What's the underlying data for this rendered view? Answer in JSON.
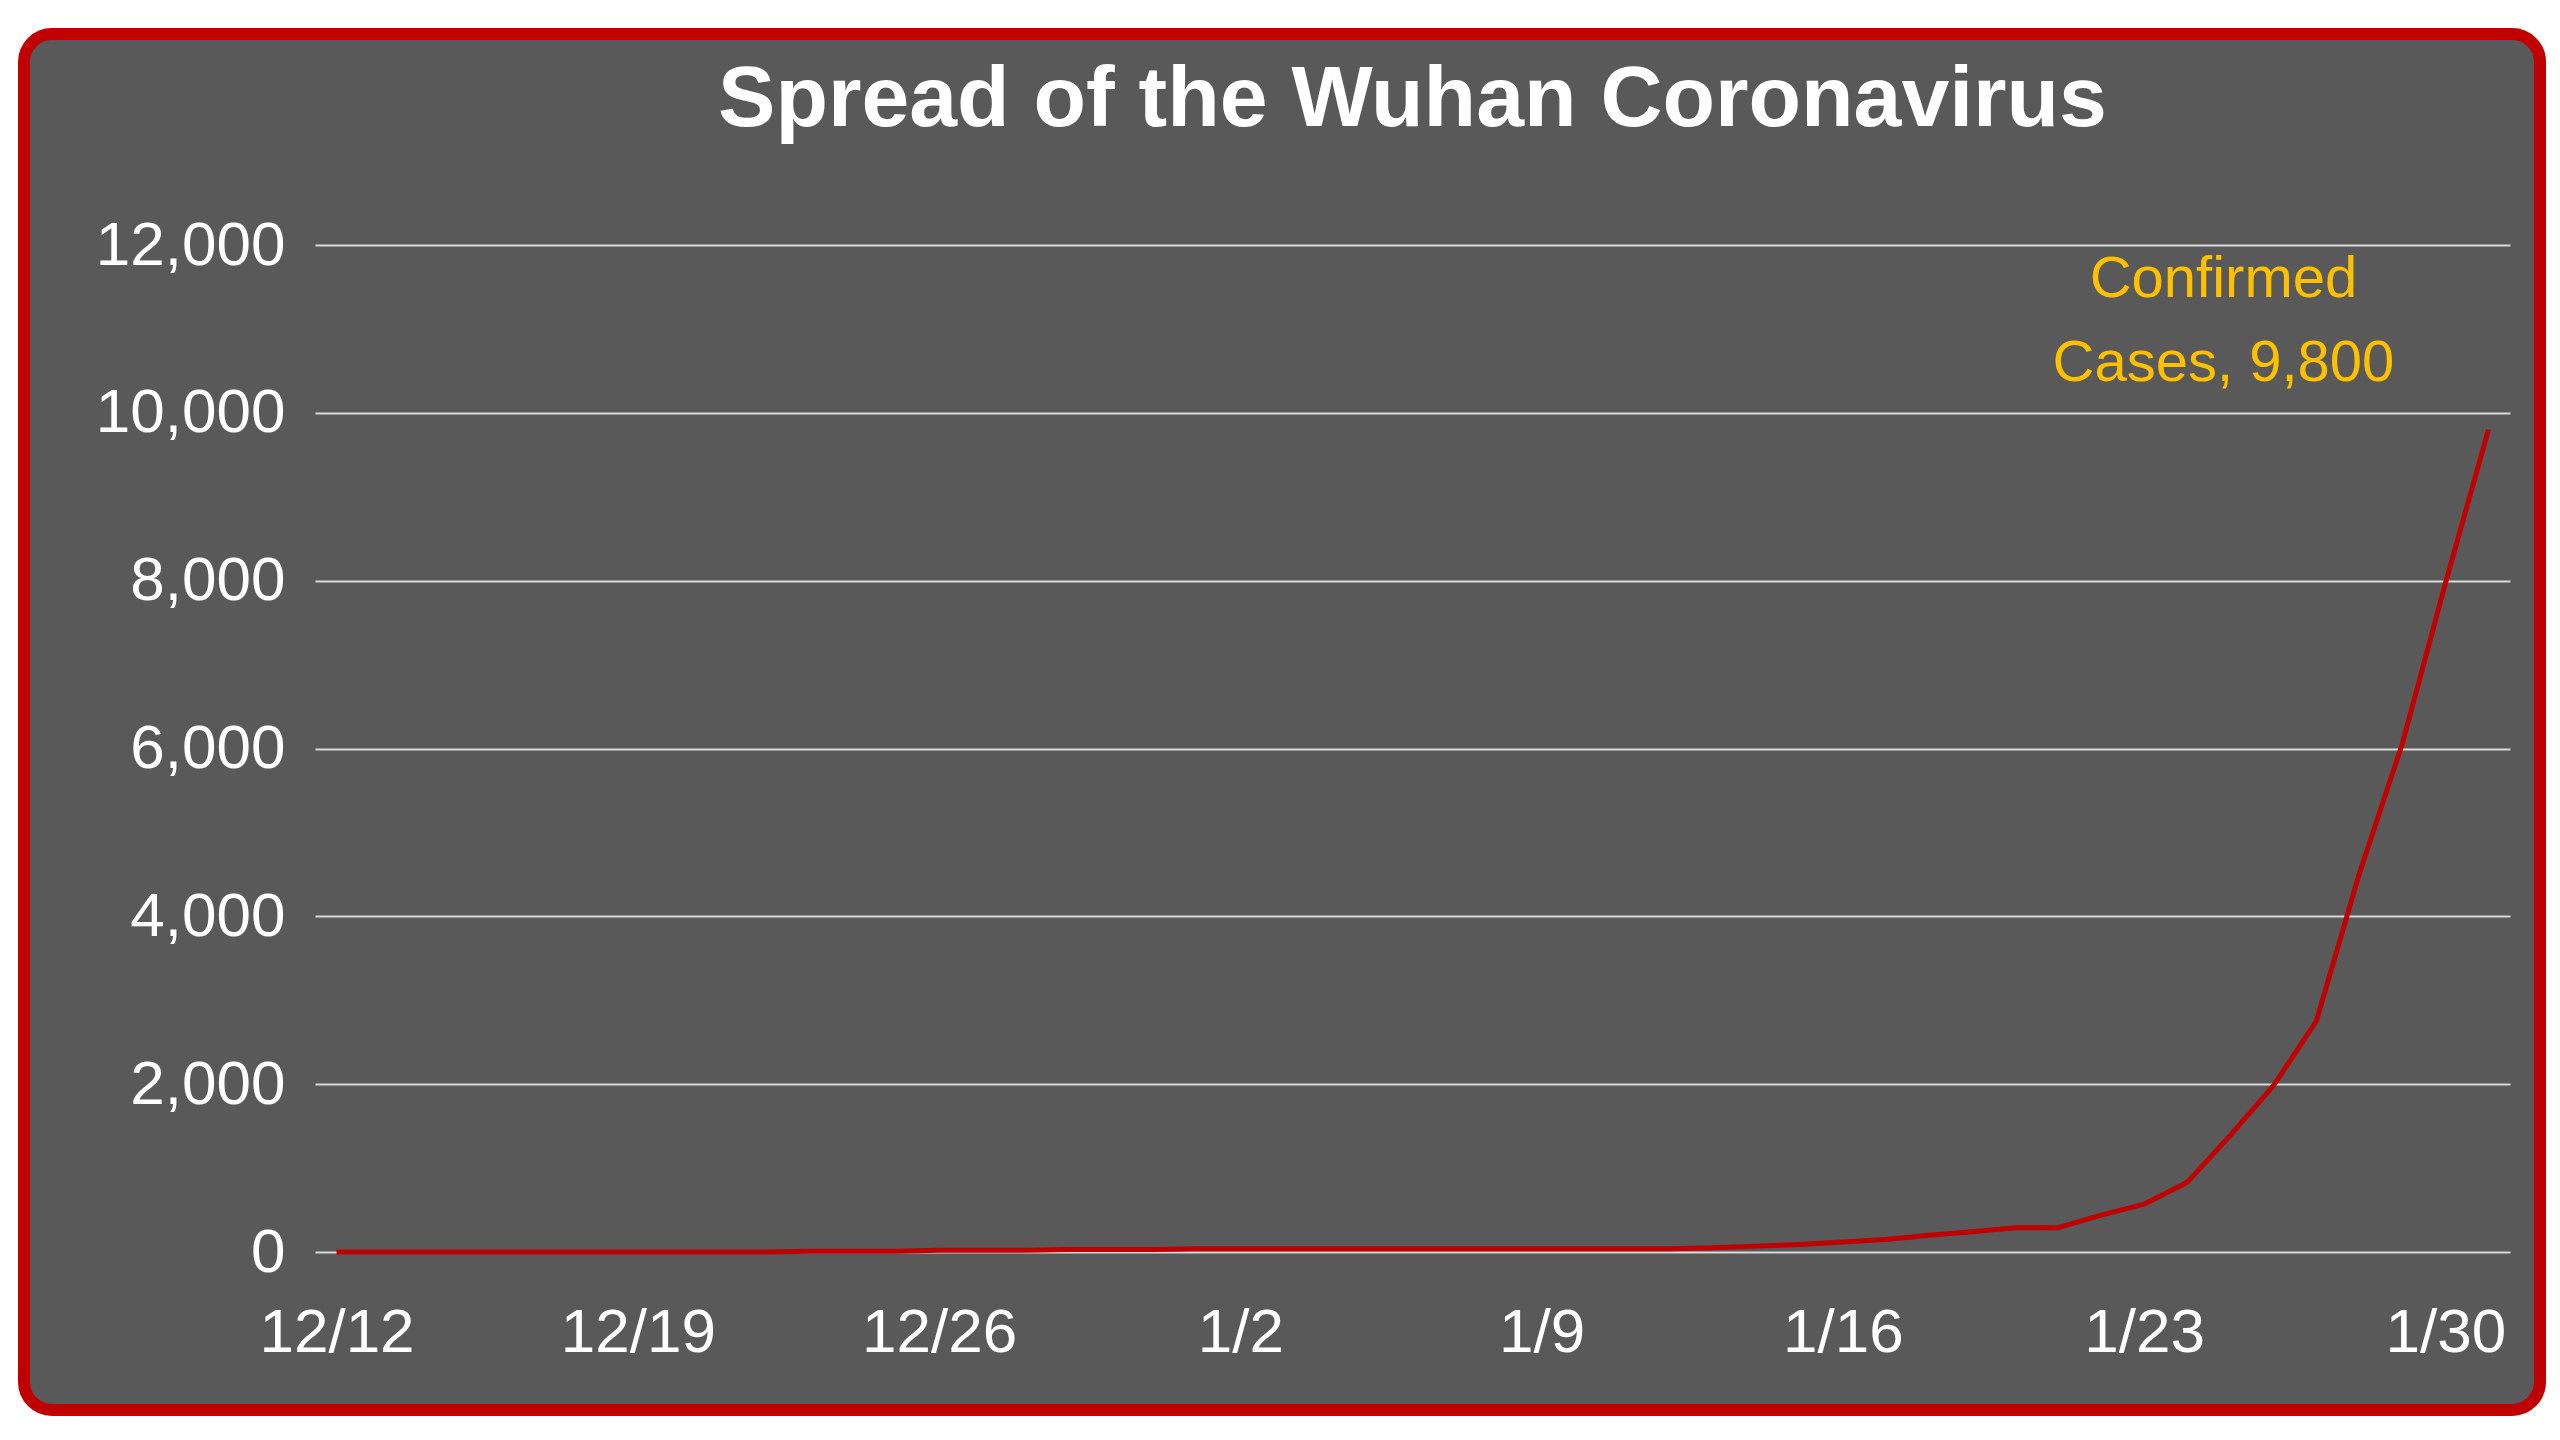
{
  "chart_data": {
    "type": "line",
    "title": "Spread of the Wuhan Coronavirus",
    "categories": [
      "12/12",
      null,
      null,
      null,
      null,
      null,
      null,
      "12/19",
      null,
      null,
      null,
      null,
      null,
      null,
      "12/26",
      null,
      null,
      null,
      null,
      null,
      null,
      "1/2",
      null,
      null,
      null,
      null,
      null,
      null,
      "1/9",
      null,
      null,
      null,
      null,
      null,
      null,
      "1/16",
      null,
      null,
      null,
      null,
      null,
      null,
      "1/23",
      null,
      null,
      null,
      null,
      null,
      null,
      "1/30",
      null
    ],
    "series": [
      {
        "color": "#c00000",
        "values": [
          0,
          0,
          0,
          0,
          0,
          0,
          0,
          0,
          0,
          0,
          0,
          10,
          10,
          10,
          20,
          20,
          20,
          30,
          30,
          30,
          40,
          40,
          40,
          40,
          40,
          40,
          40,
          40,
          40,
          40,
          40,
          40,
          50,
          70,
          90,
          120,
          150,
          200,
          240,
          290,
          290,
          440,
          570,
          830,
          1390,
          1980,
          2750,
          4510,
          6060,
          7970,
          9800
        ]
      }
    ],
    "ylim": [
      0,
      12000
    ],
    "yticks": [
      {
        "value": 0,
        "label": "0"
      },
      {
        "value": 2000,
        "label": "2,000"
      },
      {
        "value": 4000,
        "label": "4,000"
      },
      {
        "value": 6000,
        "label": "6,000"
      },
      {
        "value": 8000,
        "label": "8,000"
      },
      {
        "value": 10000,
        "label": "10,000"
      },
      {
        "value": 12000,
        "label": "12,000"
      }
    ],
    "grid": "y",
    "marker": "none",
    "line_style": "solid",
    "annotations": [
      "Confirmed Cases, 9,800"
    ]
  }
}
